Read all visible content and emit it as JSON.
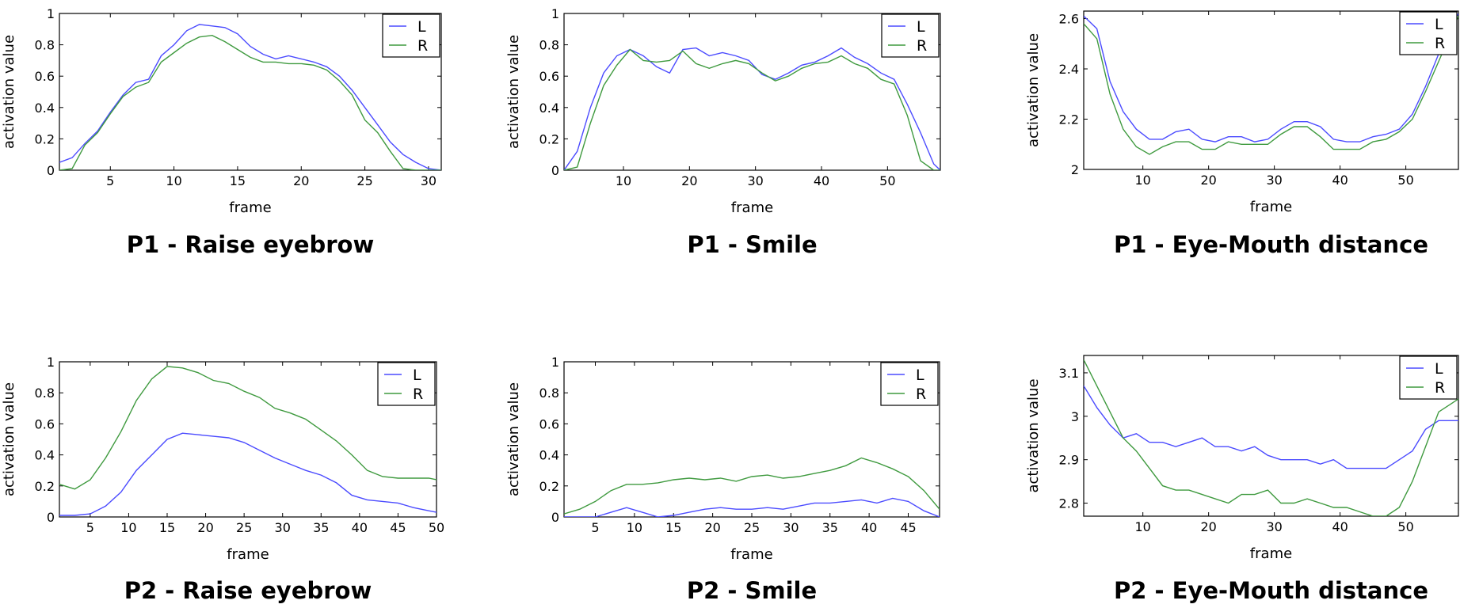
{
  "chart_data": [
    {
      "type": "line",
      "caption": "P1 - Raise eyebrow",
      "xlabel": "frame",
      "ylabel": "activation value",
      "xlim": [
        1,
        31
      ],
      "ylim": [
        0,
        1
      ],
      "xticks": [
        5,
        10,
        15,
        20,
        25,
        30
      ],
      "yticks": [
        0,
        0.2,
        0.4,
        0.6,
        0.8,
        1
      ],
      "ytick_labels": [
        "0",
        "0.2",
        "0.4",
        "0.6",
        "0.8",
        "1"
      ],
      "grid": false,
      "legend_position": "top-right",
      "colors": {
        "L": "#4b4bff",
        "R": "#3f9a3f"
      },
      "series": [
        {
          "name": "L",
          "x": [
            1,
            2,
            3,
            4,
            5,
            6,
            7,
            8,
            9,
            10,
            11,
            12,
            13,
            14,
            15,
            16,
            17,
            18,
            19,
            20,
            21,
            22,
            23,
            24,
            25,
            26,
            27,
            28,
            29,
            30,
            31
          ],
          "values": [
            0.05,
            0.08,
            0.17,
            0.25,
            0.37,
            0.48,
            0.56,
            0.58,
            0.73,
            0.8,
            0.89,
            0.93,
            0.92,
            0.91,
            0.87,
            0.79,
            0.74,
            0.71,
            0.73,
            0.71,
            0.69,
            0.66,
            0.6,
            0.51,
            0.4,
            0.29,
            0.18,
            0.1,
            0.05,
            0.01,
            0.0
          ]
        },
        {
          "name": "R",
          "x": [
            1,
            2,
            3,
            4,
            5,
            6,
            7,
            8,
            9,
            10,
            11,
            12,
            13,
            14,
            15,
            16,
            17,
            18,
            19,
            20,
            21,
            22,
            23,
            24,
            25,
            26,
            27,
            28,
            29,
            30,
            31
          ],
          "values": [
            0.0,
            0.01,
            0.16,
            0.24,
            0.36,
            0.47,
            0.53,
            0.56,
            0.69,
            0.75,
            0.81,
            0.85,
            0.86,
            0.82,
            0.77,
            0.72,
            0.69,
            0.69,
            0.68,
            0.68,
            0.67,
            0.64,
            0.57,
            0.48,
            0.32,
            0.24,
            0.12,
            0.01,
            0.0,
            0.0,
            0.0
          ]
        }
      ]
    },
    {
      "type": "line",
      "caption": "P1 - Smile",
      "xlabel": "frame",
      "ylabel": "activation value",
      "xlim": [
        1,
        58
      ],
      "ylim": [
        0,
        1
      ],
      "xticks": [
        10,
        20,
        30,
        40,
        50
      ],
      "yticks": [
        0,
        0.2,
        0.4,
        0.6,
        0.8,
        1
      ],
      "ytick_labels": [
        "0",
        "0.2",
        "0.4",
        "0.6",
        "0.8",
        "1"
      ],
      "grid": false,
      "legend_position": "top-right",
      "colors": {
        "L": "#4b4bff",
        "R": "#3f9a3f"
      },
      "series": [
        {
          "name": "L",
          "x": [
            1,
            3,
            5,
            7,
            9,
            11,
            13,
            15,
            17,
            19,
            21,
            23,
            25,
            27,
            29,
            31,
            33,
            35,
            37,
            39,
            41,
            43,
            45,
            47,
            49,
            51,
            53,
            55,
            57,
            58
          ],
          "values": [
            0.0,
            0.12,
            0.4,
            0.62,
            0.73,
            0.77,
            0.73,
            0.66,
            0.62,
            0.77,
            0.78,
            0.73,
            0.75,
            0.73,
            0.7,
            0.61,
            0.58,
            0.62,
            0.67,
            0.69,
            0.73,
            0.78,
            0.72,
            0.68,
            0.62,
            0.58,
            0.42,
            0.24,
            0.04,
            0.0
          ]
        },
        {
          "name": "R",
          "x": [
            1,
            3,
            5,
            7,
            9,
            11,
            13,
            15,
            17,
            19,
            21,
            23,
            25,
            27,
            29,
            31,
            33,
            35,
            37,
            39,
            41,
            43,
            45,
            47,
            49,
            51,
            53,
            55,
            57,
            58
          ],
          "values": [
            0.0,
            0.02,
            0.3,
            0.54,
            0.67,
            0.77,
            0.7,
            0.69,
            0.7,
            0.76,
            0.68,
            0.65,
            0.68,
            0.7,
            0.68,
            0.62,
            0.57,
            0.6,
            0.65,
            0.68,
            0.69,
            0.73,
            0.68,
            0.65,
            0.58,
            0.55,
            0.35,
            0.06,
            0.0,
            0.0
          ]
        }
      ]
    },
    {
      "type": "line",
      "caption": "P1 - Eye-Mouth distance",
      "xlabel": "frame",
      "ylabel": "activation value",
      "xlim": [
        1,
        58
      ],
      "ylim": [
        2.0,
        2.63
      ],
      "xticks": [
        10,
        20,
        30,
        40,
        50
      ],
      "yticks": [
        2.0,
        2.2,
        2.4,
        2.6
      ],
      "ytick_labels": [
        "2",
        "2.2",
        "2.4",
        "2.6"
      ],
      "grid": false,
      "legend_position": "top-right",
      "colors": {
        "L": "#4b4bff",
        "R": "#3f9a3f"
      },
      "series": [
        {
          "name": "L",
          "x": [
            1,
            3,
            5,
            7,
            9,
            11,
            13,
            15,
            17,
            19,
            21,
            23,
            25,
            27,
            29,
            31,
            33,
            35,
            37,
            39,
            41,
            43,
            45,
            47,
            49,
            51,
            53,
            55,
            57,
            58
          ],
          "values": [
            2.61,
            2.56,
            2.35,
            2.23,
            2.16,
            2.12,
            2.12,
            2.15,
            2.16,
            2.12,
            2.11,
            2.13,
            2.13,
            2.11,
            2.12,
            2.16,
            2.19,
            2.19,
            2.17,
            2.12,
            2.11,
            2.11,
            2.13,
            2.14,
            2.16,
            2.22,
            2.33,
            2.46,
            2.58,
            2.62
          ]
        },
        {
          "name": "R",
          "x": [
            1,
            3,
            5,
            7,
            9,
            11,
            13,
            15,
            17,
            19,
            21,
            23,
            25,
            27,
            29,
            31,
            33,
            35,
            37,
            39,
            41,
            43,
            45,
            47,
            49,
            51,
            53,
            55,
            57,
            58
          ],
          "values": [
            2.58,
            2.52,
            2.3,
            2.16,
            2.09,
            2.06,
            2.09,
            2.11,
            2.11,
            2.08,
            2.08,
            2.11,
            2.1,
            2.1,
            2.1,
            2.14,
            2.17,
            2.17,
            2.13,
            2.08,
            2.08,
            2.08,
            2.11,
            2.12,
            2.15,
            2.2,
            2.31,
            2.43,
            2.55,
            2.61
          ]
        }
      ]
    },
    {
      "type": "line",
      "caption": "P2 - Raise eyebrow",
      "xlabel": "frame",
      "ylabel": "activation value",
      "xlim": [
        1,
        50
      ],
      "ylim": [
        0,
        1
      ],
      "xticks": [
        5,
        10,
        15,
        20,
        25,
        30,
        35,
        40,
        45,
        50
      ],
      "yticks": [
        0,
        0.2,
        0.4,
        0.6,
        0.8,
        1
      ],
      "ytick_labels": [
        "0",
        "0.2",
        "0.4",
        "0.6",
        "0.8",
        "1"
      ],
      "grid": false,
      "legend_position": "top-right",
      "colors": {
        "L": "#4b4bff",
        "R": "#3f9a3f"
      },
      "series": [
        {
          "name": "L",
          "x": [
            1,
            3,
            5,
            7,
            9,
            11,
            13,
            15,
            17,
            19,
            21,
            23,
            25,
            27,
            29,
            31,
            33,
            35,
            37,
            39,
            41,
            43,
            45,
            47,
            49,
            50
          ],
          "values": [
            0.01,
            0.01,
            0.02,
            0.07,
            0.16,
            0.3,
            0.4,
            0.5,
            0.54,
            0.53,
            0.52,
            0.51,
            0.48,
            0.43,
            0.38,
            0.34,
            0.3,
            0.27,
            0.22,
            0.14,
            0.11,
            0.1,
            0.09,
            0.06,
            0.04,
            0.03
          ]
        },
        {
          "name": "R",
          "x": [
            1,
            3,
            5,
            7,
            9,
            11,
            13,
            15,
            17,
            19,
            21,
            23,
            25,
            27,
            29,
            31,
            33,
            35,
            37,
            39,
            41,
            43,
            45,
            47,
            49,
            50
          ],
          "values": [
            0.21,
            0.18,
            0.24,
            0.38,
            0.55,
            0.75,
            0.89,
            0.97,
            0.96,
            0.93,
            0.88,
            0.86,
            0.81,
            0.77,
            0.7,
            0.67,
            0.63,
            0.56,
            0.49,
            0.4,
            0.3,
            0.26,
            0.25,
            0.25,
            0.25,
            0.24
          ]
        }
      ]
    },
    {
      "type": "line",
      "caption": "P2 - Smile",
      "xlabel": "frame",
      "ylabel": "activation value",
      "xlim": [
        1,
        49
      ],
      "ylim": [
        0,
        1
      ],
      "xticks": [
        5,
        10,
        15,
        20,
        25,
        30,
        35,
        40,
        45
      ],
      "yticks": [
        0,
        0.2,
        0.4,
        0.6,
        0.8,
        1
      ],
      "ytick_labels": [
        "0",
        "0.2",
        "0.4",
        "0.6",
        "0.8",
        "1"
      ],
      "grid": false,
      "legend_position": "top-right",
      "colors": {
        "L": "#4b4bff",
        "R": "#3f9a3f"
      },
      "series": [
        {
          "name": "L",
          "x": [
            1,
            3,
            5,
            7,
            9,
            11,
            13,
            15,
            17,
            19,
            21,
            23,
            25,
            27,
            29,
            31,
            33,
            35,
            37,
            39,
            41,
            43,
            45,
            47,
            49
          ],
          "values": [
            0.0,
            0.0,
            0.0,
            0.03,
            0.06,
            0.03,
            0.0,
            0.01,
            0.03,
            0.05,
            0.06,
            0.05,
            0.05,
            0.06,
            0.05,
            0.07,
            0.09,
            0.09,
            0.1,
            0.11,
            0.09,
            0.12,
            0.1,
            0.04,
            0.0
          ]
        },
        {
          "name": "R",
          "x": [
            1,
            3,
            5,
            7,
            9,
            11,
            13,
            15,
            17,
            19,
            21,
            23,
            25,
            27,
            29,
            31,
            33,
            35,
            37,
            39,
            41,
            43,
            45,
            47,
            49
          ],
          "values": [
            0.02,
            0.05,
            0.1,
            0.17,
            0.21,
            0.21,
            0.22,
            0.24,
            0.25,
            0.24,
            0.25,
            0.23,
            0.26,
            0.27,
            0.25,
            0.26,
            0.28,
            0.3,
            0.33,
            0.38,
            0.35,
            0.31,
            0.26,
            0.17,
            0.05
          ]
        }
      ]
    },
    {
      "type": "line",
      "caption": "P2 - Eye-Mouth distance",
      "xlabel": "frame",
      "ylabel": "activation value",
      "xlim": [
        1,
        58
      ],
      "ylim": [
        2.77,
        3.14
      ],
      "xticks": [
        10,
        20,
        30,
        40,
        50
      ],
      "yticks": [
        2.8,
        2.9,
        3.0,
        3.1
      ],
      "ytick_labels": [
        "2.8",
        "2.9",
        "3",
        "3.1"
      ],
      "grid": false,
      "legend_position": "top-right",
      "colors": {
        "L": "#4b4bff",
        "R": "#3f9a3f"
      },
      "series": [
        {
          "name": "L",
          "x": [
            1,
            3,
            5,
            7,
            9,
            11,
            13,
            15,
            17,
            19,
            21,
            23,
            25,
            27,
            29,
            31,
            33,
            35,
            37,
            39,
            41,
            43,
            45,
            47,
            49,
            51,
            53,
            55,
            57,
            58
          ],
          "values": [
            3.07,
            3.02,
            2.98,
            2.95,
            2.96,
            2.94,
            2.94,
            2.93,
            2.94,
            2.95,
            2.93,
            2.93,
            2.92,
            2.93,
            2.91,
            2.9,
            2.9,
            2.9,
            2.89,
            2.9,
            2.88,
            2.88,
            2.88,
            2.88,
            2.9,
            2.92,
            2.97,
            2.99,
            2.99,
            2.99
          ]
        },
        {
          "name": "R",
          "x": [
            1,
            3,
            5,
            7,
            9,
            11,
            13,
            15,
            17,
            19,
            21,
            23,
            25,
            27,
            29,
            31,
            33,
            35,
            37,
            39,
            41,
            43,
            45,
            47,
            49,
            51,
            53,
            55,
            57,
            58
          ],
          "values": [
            3.13,
            3.07,
            3.01,
            2.95,
            2.92,
            2.88,
            2.84,
            2.83,
            2.83,
            2.82,
            2.81,
            2.8,
            2.82,
            2.82,
            2.83,
            2.8,
            2.8,
            2.81,
            2.8,
            2.79,
            2.79,
            2.78,
            2.77,
            2.77,
            2.79,
            2.85,
            2.93,
            3.01,
            3.03,
            3.04
          ]
        }
      ]
    }
  ]
}
